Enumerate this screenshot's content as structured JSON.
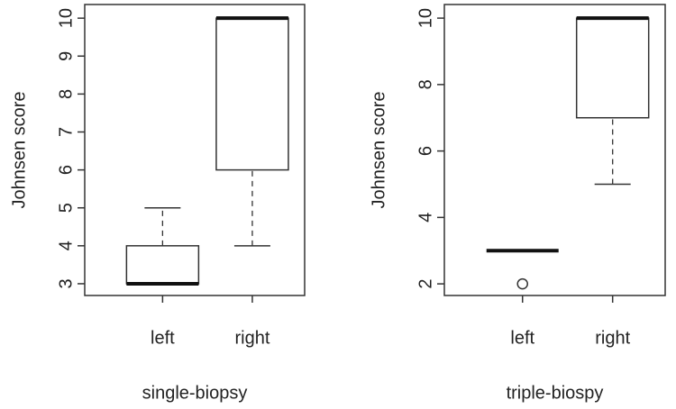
{
  "chart_data": [
    {
      "type": "box",
      "y_label": "Johnsen score",
      "x_label": "single-biopsy",
      "categories": [
        "left",
        "right"
      ],
      "boxes": [
        {
          "min": 3,
          "q1": 3,
          "median": 3,
          "q3": 4,
          "max": 5,
          "outliers": []
        },
        {
          "min": 4,
          "q1": 6,
          "median": 10,
          "q3": 10,
          "max": 10,
          "outliers": []
        }
      ],
      "ylim": [
        2.69,
        10.36
      ],
      "yticks": [
        3,
        4,
        5,
        6,
        7,
        8,
        9,
        10
      ]
    },
    {
      "type": "box",
      "y_label": "Johnsen score",
      "x_label": "triple-biospy",
      "categories": [
        "left",
        "right"
      ],
      "boxes": [
        {
          "min": 3,
          "q1": 3,
          "median": 3,
          "q3": 3,
          "max": 3,
          "outliers": [
            2
          ]
        },
        {
          "min": 5,
          "q1": 7,
          "median": 10,
          "q3": 10,
          "max": 10,
          "outliers": []
        }
      ],
      "ylim": [
        1.65,
        10.41
      ],
      "yticks": [
        2,
        4,
        6,
        8,
        10
      ]
    }
  ]
}
